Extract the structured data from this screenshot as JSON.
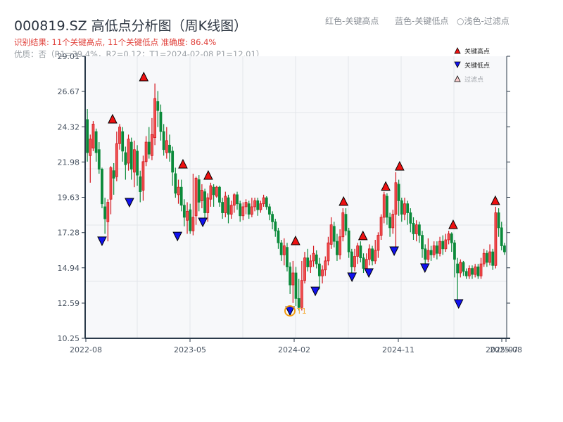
{
  "header": {
    "title": "000819.SZ 高低点分析图（周K线图）",
    "result_text": "识别结果: 11个关键高点, 11个关键低点   准确度: 86.4%",
    "quality_text": "优质：否（R1=39.4%，R2=0.12；T1=2024-02-08 P1=12.01）",
    "hint_red": "红色-关键高点",
    "hint_blue": "蓝色-关键低点",
    "hint_light": "○浅色-过滤点"
  },
  "legend": {
    "items": [
      {
        "label": "关键高点",
        "marker": "triangle-up",
        "color": "#ee1111"
      },
      {
        "label": "关键低点",
        "marker": "triangle-down",
        "color": "#1111ee"
      },
      {
        "label": "过滤点",
        "marker": "triangle-up-hollow",
        "color": "#f6c8c8"
      }
    ]
  },
  "colors": {
    "up": "#d4161e",
    "up_fill": "#f05050",
    "down": "#0b8a3a",
    "high_marker": "#ee1111",
    "low_marker": "#1111ee",
    "t1_ring": "#f39c12",
    "axis": "#2b3a4a",
    "grid": "#e3e6ea",
    "plot_bg": "#f7f8fa"
  },
  "chart_data": {
    "type": "candlestick",
    "title": "000819.SZ 高低点分析图（周K线图）",
    "xlabel": "",
    "ylabel": "",
    "ylim": [
      10.25,
      29.01
    ],
    "y_ticks": [
      10.25,
      12.59,
      14.94,
      17.28,
      19.63,
      21.98,
      24.32,
      26.67,
      29.01
    ],
    "x_ticks": [
      "2022-08",
      "2023-05",
      "2024-02",
      "2024-11",
      "2025-07",
      "2025-08"
    ],
    "x_range": [
      "2022-08",
      "2025-08"
    ],
    "grid": true,
    "legend_position": "top-right",
    "annotations": [
      {
        "label": "T1",
        "date": "2024-02-08",
        "price": 12.01
      }
    ],
    "key_highs": [
      {
        "x_frac": 0.065,
        "price": 24.47
      },
      {
        "x_frac": 0.139,
        "price": 27.28
      },
      {
        "x_frac": 0.232,
        "price": 21.48
      },
      {
        "x_frac": 0.292,
        "price": 20.73
      },
      {
        "x_frac": 0.499,
        "price": 16.38
      },
      {
        "x_frac": 0.613,
        "price": 19.0
      },
      {
        "x_frac": 0.659,
        "price": 16.71
      },
      {
        "x_frac": 0.713,
        "price": 20.0
      },
      {
        "x_frac": 0.746,
        "price": 21.34
      },
      {
        "x_frac": 0.873,
        "price": 17.45
      },
      {
        "x_frac": 0.973,
        "price": 19.05
      }
    ],
    "key_lows": [
      {
        "x_frac": 0.04,
        "price": 16.71
      },
      {
        "x_frac": 0.105,
        "price": 19.28
      },
      {
        "x_frac": 0.219,
        "price": 17.03
      },
      {
        "x_frac": 0.279,
        "price": 17.97
      },
      {
        "x_frac": 0.486,
        "price": 12.07
      },
      {
        "x_frac": 0.546,
        "price": 13.38
      },
      {
        "x_frac": 0.633,
        "price": 14.32
      },
      {
        "x_frac": 0.673,
        "price": 14.6
      },
      {
        "x_frac": 0.733,
        "price": 16.05
      },
      {
        "x_frac": 0.806,
        "price": 14.93
      },
      {
        "x_frac": 0.886,
        "price": 12.54
      }
    ],
    "candles": [
      [
        24.8,
        22.6,
        25.5,
        22.0
      ],
      [
        22.4,
        23.5,
        23.8,
        20.6
      ],
      [
        22.9,
        24.5,
        24.7,
        22.7
      ],
      [
        24.0,
        22.6,
        24.2,
        22.0
      ],
      [
        22.8,
        21.5,
        23.3,
        21.2
      ],
      [
        21.5,
        19.2,
        21.6,
        18.9
      ],
      [
        19.0,
        18.2,
        19.6,
        17.2
      ],
      [
        18.0,
        19.3,
        19.5,
        16.7
      ],
      [
        19.5,
        21.6,
        21.7,
        18.5
      ],
      [
        21.4,
        20.9,
        21.9,
        19.8
      ],
      [
        21.0,
        23.2,
        24.0,
        20.7
      ],
      [
        23.2,
        24.3,
        24.5,
        22.8
      ],
      [
        24.0,
        22.7,
        24.3,
        22.0
      ],
      [
        22.6,
        21.8,
        23.0,
        20.8
      ],
      [
        21.9,
        23.5,
        23.8,
        21.4
      ],
      [
        23.3,
        21.5,
        23.6,
        20.8
      ],
      [
        21.3,
        22.8,
        23.4,
        20.3
      ],
      [
        22.7,
        21.1,
        23.1,
        20.4
      ],
      [
        21.0,
        20.0,
        21.4,
        19.3
      ],
      [
        20.1,
        22.0,
        22.4,
        19.4
      ],
      [
        22.0,
        23.3,
        23.7,
        21.7
      ],
      [
        23.3,
        22.5,
        24.3,
        22.2
      ],
      [
        22.4,
        23.8,
        24.9,
        22.1
      ],
      [
        23.6,
        26.2,
        27.2,
        23.1
      ],
      [
        26.0,
        25.4,
        26.7,
        24.3
      ],
      [
        25.3,
        24.0,
        25.8,
        23.4
      ],
      [
        24.0,
        22.8,
        24.5,
        22.4
      ],
      [
        22.6,
        23.4,
        24.3,
        22.2
      ],
      [
        23.1,
        22.6,
        23.8,
        22.0
      ],
      [
        22.7,
        21.3,
        23.0,
        20.4
      ],
      [
        21.2,
        19.9,
        21.6,
        19.6
      ],
      [
        19.8,
        20.3,
        20.8,
        19.2
      ],
      [
        20.3,
        19.1,
        20.8,
        18.7
      ],
      [
        19.1,
        18.3,
        19.5,
        17.7
      ],
      [
        18.1,
        18.7,
        19.3,
        17.2
      ],
      [
        18.8,
        17.4,
        19.2,
        17.2
      ],
      [
        17.4,
        18.3,
        21.2,
        17.1
      ],
      [
        18.4,
        20.9,
        21.0,
        17.8
      ],
      [
        20.8,
        19.3,
        21.1,
        18.7
      ],
      [
        19.4,
        20.1,
        20.5,
        18.9
      ],
      [
        20.0,
        18.6,
        20.2,
        18.0
      ],
      [
        18.6,
        19.6,
        19.9,
        18.0
      ],
      [
        19.5,
        20.4,
        20.6,
        19.0
      ],
      [
        20.3,
        19.8,
        20.5,
        19.0
      ],
      [
        19.7,
        20.3,
        20.4,
        19.6
      ],
      [
        20.3,
        19.3,
        20.4,
        19.0
      ],
      [
        19.3,
        18.6,
        19.6,
        18.2
      ],
      [
        18.6,
        19.7,
        20.0,
        18.3
      ],
      [
        19.6,
        18.5,
        19.8,
        17.9
      ],
      [
        18.5,
        19.1,
        19.4,
        18.2
      ],
      [
        19.1,
        19.8,
        19.9,
        18.6
      ],
      [
        19.8,
        19.2,
        20.0,
        18.8
      ],
      [
        19.2,
        18.4,
        19.4,
        18.0
      ],
      [
        18.4,
        19.0,
        19.3,
        18.1
      ],
      [
        19.0,
        19.3,
        19.5,
        18.5
      ],
      [
        19.2,
        18.5,
        19.4,
        18.2
      ],
      [
        18.5,
        19.0,
        19.6,
        18.3
      ],
      [
        19.0,
        19.4,
        19.6,
        18.7
      ],
      [
        19.4,
        18.8,
        19.6,
        18.4
      ],
      [
        18.8,
        19.2,
        19.4,
        18.6
      ],
      [
        19.2,
        19.6,
        19.8,
        19.0
      ],
      [
        19.6,
        19.0,
        19.7,
        18.8
      ],
      [
        19.0,
        18.5,
        19.2,
        18.1
      ],
      [
        18.5,
        18.0,
        18.7,
        17.5
      ],
      [
        18.0,
        17.4,
        18.2,
        17.0
      ],
      [
        17.4,
        16.6,
        17.6,
        16.2
      ],
      [
        16.6,
        15.8,
        16.8,
        15.4
      ],
      [
        15.8,
        16.4,
        16.9,
        15.1
      ],
      [
        16.3,
        15.0,
        16.6,
        14.7
      ],
      [
        15.0,
        13.8,
        15.3,
        13.2
      ],
      [
        13.8,
        14.6,
        15.4,
        12.6
      ],
      [
        14.6,
        12.9,
        15.0,
        12.4
      ],
      [
        12.9,
        12.3,
        14.2,
        12.1
      ],
      [
        12.3,
        14.1,
        15.4,
        12.1
      ],
      [
        14.1,
        15.6,
        16.0,
        13.9
      ],
      [
        15.6,
        15.0,
        16.2,
        14.7
      ],
      [
        15.0,
        15.4,
        15.8,
        14.6
      ],
      [
        15.4,
        15.9,
        16.4,
        15.0
      ],
      [
        15.8,
        15.2,
        16.1,
        14.9
      ],
      [
        15.2,
        14.4,
        15.6,
        13.5
      ],
      [
        14.4,
        14.8,
        15.1,
        13.9
      ],
      [
        14.8,
        15.4,
        15.7,
        14.4
      ],
      [
        15.4,
        16.6,
        17.0,
        15.1
      ],
      [
        16.5,
        17.8,
        18.3,
        16.2
      ],
      [
        17.7,
        16.7,
        18.0,
        16.3
      ],
      [
        16.7,
        15.8,
        17.2,
        15.4
      ],
      [
        15.8,
        17.0,
        17.5,
        15.5
      ],
      [
        17.0,
        18.6,
        18.9,
        16.7
      ],
      [
        18.5,
        17.4,
        18.9,
        17.1
      ],
      [
        17.4,
        16.0,
        17.6,
        15.6
      ],
      [
        16.0,
        15.0,
        16.2,
        14.4
      ],
      [
        15.0,
        15.7,
        16.2,
        14.7
      ],
      [
        15.7,
        16.4,
        16.6,
        15.2
      ],
      [
        16.4,
        15.6,
        16.7,
        15.3
      ],
      [
        15.6,
        14.9,
        15.9,
        14.6
      ],
      [
        14.9,
        15.5,
        15.9,
        14.6
      ],
      [
        15.5,
        16.2,
        16.5,
        15.1
      ],
      [
        16.2,
        15.4,
        16.4,
        15.1
      ],
      [
        15.4,
        16.1,
        16.8,
        15.2
      ],
      [
        16.1,
        17.1,
        17.3,
        15.6
      ],
      [
        17.1,
        18.3,
        18.5,
        16.8
      ],
      [
        18.3,
        19.8,
        20.0,
        17.9
      ],
      [
        19.7,
        18.3,
        19.9,
        17.8
      ],
      [
        18.3,
        17.6,
        18.6,
        17.0
      ],
      [
        17.6,
        18.5,
        18.8,
        17.2
      ],
      [
        18.5,
        20.6,
        21.3,
        16.1
      ],
      [
        20.5,
        19.4,
        20.8,
        18.4
      ],
      [
        19.4,
        18.5,
        19.6,
        18.0
      ],
      [
        18.5,
        19.2,
        19.6,
        18.1
      ],
      [
        19.2,
        18.6,
        19.4,
        17.8
      ],
      [
        18.6,
        17.9,
        18.9,
        17.3
      ],
      [
        17.9,
        17.2,
        18.3,
        16.8
      ],
      [
        17.2,
        17.8,
        18.1,
        16.7
      ],
      [
        17.8,
        17.1,
        18.0,
        16.6
      ],
      [
        17.1,
        16.2,
        17.4,
        15.6
      ],
      [
        16.2,
        15.5,
        16.5,
        14.9
      ],
      [
        15.5,
        16.1,
        16.9,
        15.3
      ],
      [
        16.1,
        15.8,
        16.4,
        15.4
      ],
      [
        15.8,
        16.4,
        16.7,
        15.6
      ],
      [
        16.4,
        15.9,
        16.7,
        15.5
      ],
      [
        15.9,
        16.7,
        17.0,
        15.7
      ],
      [
        16.7,
        16.2,
        17.1,
        15.8
      ],
      [
        16.2,
        16.8,
        17.2,
        16.0
      ],
      [
        16.8,
        17.2,
        17.4,
        16.5
      ],
      [
        17.2,
        16.6,
        17.3,
        16.0
      ],
      [
        16.6,
        15.5,
        16.8,
        14.3
      ],
      [
        15.2,
        14.6,
        15.6,
        12.6
      ],
      [
        14.6,
        15.3,
        15.5,
        14.3
      ],
      [
        15.3,
        14.7,
        15.4,
        14.4
      ],
      [
        14.7,
        14.4,
        14.9,
        14.2
      ],
      [
        14.4,
        14.9,
        15.1,
        14.2
      ],
      [
        14.9,
        14.5,
        15.1,
        14.2
      ],
      [
        14.5,
        15.0,
        15.2,
        14.3
      ],
      [
        15.0,
        14.4,
        15.2,
        14.2
      ],
      [
        14.4,
        15.2,
        15.6,
        14.2
      ],
      [
        15.2,
        15.9,
        16.2,
        15.0
      ],
      [
        15.9,
        15.3,
        16.1,
        15.0
      ],
      [
        15.3,
        16.0,
        16.5,
        15.1
      ],
      [
        16.0,
        15.1,
        16.2,
        14.8
      ],
      [
        15.1,
        18.6,
        19.0,
        14.9
      ],
      [
        18.6,
        17.6,
        18.9,
        17.0
      ],
      [
        17.6,
        16.4,
        18.0,
        16.1
      ],
      [
        16.4,
        16.0,
        16.6,
        15.8
      ]
    ]
  },
  "axes": {
    "y_labels": [
      "29.01",
      "26.67",
      "24.32",
      "21.98",
      "19.63",
      "17.28",
      "14.94",
      "12.59",
      "10.25"
    ],
    "x_labels": [
      "2022-08",
      "2023-05",
      "2024-02",
      "2024-11",
      "2025-07",
      "2025-08"
    ],
    "t1_label": "T1"
  }
}
